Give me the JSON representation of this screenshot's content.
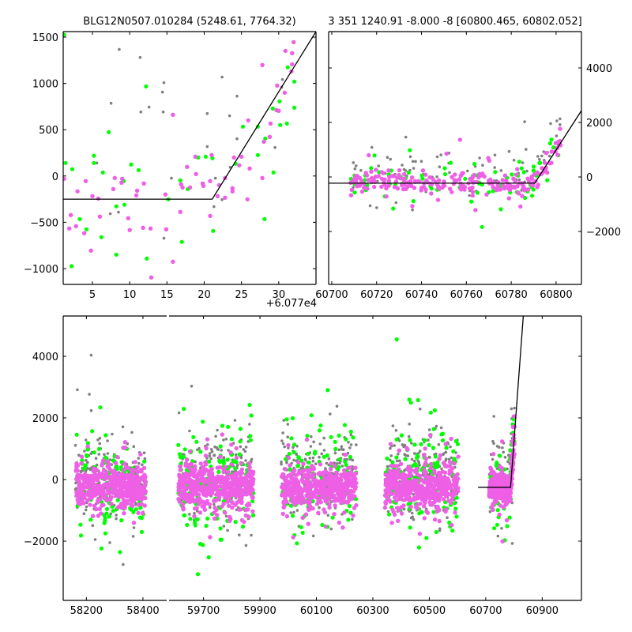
{
  "colors": {
    "gray": "#808080",
    "green": "#00ff00",
    "magenta": "#ef5fe6",
    "model": "#000000"
  },
  "chart_data": [
    {
      "panel": "top-left",
      "type": "scatter",
      "title": "BLG12N0507.010284 (5248.61, 7764.32)",
      "xlim": [
        1.08,
        35.0
      ],
      "ylim": [
        -1171,
        1560
      ],
      "x_offset_text": "+6.077e4",
      "xticks": [
        5,
        10,
        15,
        20,
        25,
        30
      ],
      "xtick_labels": [
        "5",
        "10",
        "15",
        "20",
        "25",
        "30"
      ],
      "yticks": [
        -1000,
        -500,
        0,
        500,
        1000,
        1500
      ],
      "ytick_labels": [
        "−1000",
        "−500",
        "0",
        "500",
        "1000",
        "1500"
      ],
      "ytick_side": "left",
      "model_line": [
        [
          1.08,
          -250
        ],
        [
          21.07,
          -250
        ],
        [
          35.0,
          1560
        ]
      ],
      "series": [
        {
          "name": "gray",
          "points": [
            [
              8.6,
              1367
            ],
            [
              11.4,
              1281
            ],
            [
              7.5,
              786
            ],
            [
              11.5,
              692
            ],
            [
              12.6,
              744
            ],
            [
              14.6,
              1008
            ],
            [
              14.4,
              906
            ],
            [
              14.5,
              692
            ],
            [
              5.6,
              141
            ],
            [
              7.4,
              -408
            ],
            [
              8.5,
              -391
            ],
            [
              14.6,
              -673
            ],
            [
              15.6,
              -24
            ],
            [
              20.4,
              675
            ],
            [
              20.4,
              317
            ],
            [
              21.5,
              -24
            ],
            [
              21.3,
              -331
            ],
            [
              22.4,
              -255
            ],
            [
              22.4,
              1068
            ],
            [
              23.4,
              650
            ],
            [
              23.5,
              95
            ],
            [
              24.4,
              863
            ],
            [
              24.4,
              402
            ],
            [
              29.5,
              308
            ],
            [
              30.5,
              1042
            ],
            [
              30.4,
              960
            ]
          ]
        },
        {
          "name": "green",
          "points": [
            [
              1.2,
              1526
            ],
            [
              1.4,
              141
            ],
            [
              2.3,
              73
            ],
            [
              2.2,
              -974
            ],
            [
              3.3,
              -465
            ],
            [
              4.2,
              -576
            ],
            [
              5.2,
              218
            ],
            [
              5.2,
              141
            ],
            [
              6.4,
              38
            ],
            [
              7.2,
              474
            ],
            [
              6.2,
              -661
            ],
            [
              8.2,
              -849
            ],
            [
              8.2,
              -328
            ],
            [
              9.3,
              -311
            ],
            [
              9.2,
              -55
            ],
            [
              10.2,
              124
            ],
            [
              11.2,
              64
            ],
            [
              12.2,
              968
            ],
            [
              12.3,
              -892
            ],
            [
              15.2,
              -252
            ],
            [
              16.8,
              -47
            ],
            [
              17.0,
              -712
            ],
            [
              17.8,
              -141
            ],
            [
              19.2,
              200
            ],
            [
              20.2,
              209
            ],
            [
              21.1,
              192
            ],
            [
              21.2,
              -593
            ],
            [
              24.2,
              132
            ],
            [
              25.2,
              533
            ],
            [
              27.2,
              533
            ],
            [
              27.2,
              226
            ],
            [
              28.2,
              405
            ],
            [
              28.1,
              -465
            ],
            [
              29.3,
              38
            ],
            [
              29.2,
              729
            ],
            [
              30.1,
              806
            ],
            [
              30.2,
              550
            ],
            [
              31.1,
              567
            ],
            [
              31.2,
              1173
            ],
            [
              32.1,
              1020
            ],
            [
              32.1,
              738
            ]
          ]
        },
        {
          "name": "magenta",
          "points": [
            [
              1.2,
              -30
            ],
            [
              2.1,
              -422
            ],
            [
              1.9,
              -567
            ],
            [
              2.8,
              -542
            ],
            [
              3.9,
              -618
            ],
            [
              4.1,
              -55
            ],
            [
              3.0,
              -166
            ],
            [
              4.8,
              -806
            ],
            [
              5.0,
              -218
            ],
            [
              5.8,
              -243
            ],
            [
              6.0,
              -439
            ],
            [
              7.8,
              -141
            ],
            [
              8.0,
              -21
            ],
            [
              9.0,
              -30
            ],
            [
              8.9,
              -73
            ],
            [
              9.8,
              -456
            ],
            [
              10.0,
              -584
            ],
            [
              10.9,
              -209
            ],
            [
              11.0,
              -158
            ],
            [
              11.9,
              -81
            ],
            [
              11.8,
              -559
            ],
            [
              12.8,
              -567
            ],
            [
              12.9,
              -1096
            ],
            [
              14.9,
              -576
            ],
            [
              14.8,
              -200
            ],
            [
              15.8,
              661
            ],
            [
              15.8,
              -926
            ],
            [
              16.8,
              -388
            ],
            [
              16.9,
              -90
            ],
            [
              17.1,
              -124
            ],
            [
              18.1,
              -124
            ],
            [
              17.7,
              98
            ],
            [
              18.8,
              209
            ],
            [
              18.9,
              21
            ],
            [
              19.8,
              -81
            ],
            [
              19.9,
              -107
            ],
            [
              20.8,
              -431
            ],
            [
              20.8,
              -55
            ],
            [
              21.0,
              226
            ],
            [
              21.8,
              -218
            ],
            [
              22.0,
              -98
            ],
            [
              22.8,
              -21
            ],
            [
              22.8,
              -235
            ],
            [
              23.8,
              -132
            ],
            [
              23.8,
              -166
            ],
            [
              24.0,
              200
            ],
            [
              24.7,
              115
            ],
            [
              25.0,
              209
            ],
            [
              25.8,
              -252
            ],
            [
              25.9,
              601
            ],
            [
              26.1,
              81
            ],
            [
              27.8,
              1199
            ],
            [
              27.8,
              -21
            ],
            [
              28.0,
              371
            ],
            [
              28.8,
              422
            ],
            [
              28.9,
              567
            ],
            [
              29.7,
              712
            ],
            [
              29.8,
              977
            ],
            [
              30.0,
              704
            ],
            [
              30.8,
              900
            ],
            [
              30.9,
              1352
            ],
            [
              31.7,
              1130
            ],
            [
              31.8,
              1207
            ],
            [
              31.8,
              1327
            ],
            [
              32.0,
              1446
            ]
          ]
        }
      ]
    },
    {
      "panel": "top-right",
      "type": "scatter",
      "title": "3 351 1240.91 -8.000 -8 [60800.465, 60802.052]",
      "xlim": [
        60698.6,
        60811.3
      ],
      "ylim": [
        -3942,
        5333
      ],
      "xticks": [
        60700,
        60720,
        60740,
        60760,
        60780,
        60800
      ],
      "xtick_labels": [
        "60700",
        "60720",
        "60740",
        "60760",
        "60780",
        "60800"
      ],
      "yticks": [
        -2000,
        0,
        2000,
        4000
      ],
      "ytick_labels": [
        "−2000",
        "0",
        "2000",
        "4000"
      ],
      "ytick_side": "right",
      "model_line": [
        [
          60698.6,
          -230
        ],
        [
          60790.5,
          -230
        ],
        [
          60811.3,
          2435
        ]
      ],
      "trend": {
        "kink_x": 60790.5,
        "slope_per_day": 130
      },
      "seasons": [
        {
          "x_range": [
            60708,
            60802
          ],
          "counts": {
            "gray": 90,
            "green": 80,
            "magenta": 230
          },
          "y_center": {
            "gray": 250,
            "green": -150,
            "magenta": -200
          },
          "y_sigma": {
            "gray": 500,
            "green": 450,
            "magenta": 230
          }
        }
      ]
    },
    {
      "panel": "bottom",
      "type": "scatter",
      "broken_x_axis": true,
      "xlim_segments": [
        [
          58118,
          58484
        ],
        [
          59578,
          61039
        ]
      ],
      "ylim": [
        -3923,
        5308
      ],
      "xticks": [
        [
          58200,
          58400
        ],
        [
          59700,
          59900,
          60100,
          60300,
          60500,
          60700,
          60900
        ]
      ],
      "xtick_labels": [
        [
          "58200",
          "58400"
        ],
        [
          "59700",
          "59900",
          "60100",
          "60300",
          "60500",
          "60700",
          "60900"
        ]
      ],
      "yticks": [
        -2000,
        0,
        2000,
        4000
      ],
      "ytick_labels": [
        "−2000",
        "0",
        "2000",
        "4000"
      ],
      "model_line": [
        [
          60673,
          -250
        ],
        [
          60788,
          -250
        ],
        [
          60833,
          5308
        ]
      ],
      "trend": {
        "kink_x": 60788,
        "slope_per_day": 130
      },
      "seasons": [
        {
          "x_range": [
            58160,
            58410
          ],
          "counts": {
            "gray": 200,
            "green": 130,
            "magenta": 450
          },
          "y_center": {
            "gray": 0,
            "green": -250,
            "magenta": -200
          },
          "y_sigma": {
            "gray": 650,
            "green": 800,
            "magenta": 330
          }
        },
        {
          "x_range": [
            59611,
            59877
          ],
          "counts": {
            "gray": 220,
            "green": 140,
            "magenta": 470
          },
          "y_center": {
            "gray": 100,
            "green": -100,
            "magenta": -250
          },
          "y_sigma": {
            "gray": 650,
            "green": 850,
            "magenta": 350
          }
        },
        {
          "x_range": [
            59975,
            60241
          ],
          "counts": {
            "gray": 220,
            "green": 120,
            "magenta": 460
          },
          "y_center": {
            "gray": 100,
            "green": -100,
            "magenta": -250
          },
          "y_sigma": {
            "gray": 650,
            "green": 800,
            "magenta": 320
          }
        },
        {
          "x_range": [
            60343,
            60603
          ],
          "counts": {
            "gray": 220,
            "green": 140,
            "magenta": 470
          },
          "y_center": {
            "gray": 150,
            "green": -100,
            "magenta": -250
          },
          "y_sigma": {
            "gray": 700,
            "green": 850,
            "magenta": 330
          }
        },
        {
          "x_range": [
            60712,
            60802
          ],
          "counts": {
            "gray": 70,
            "green": 60,
            "magenta": 260
          },
          "y_center": {
            "gray": 200,
            "green": -150,
            "magenta": -250
          },
          "y_sigma": {
            "gray": 600,
            "green": 650,
            "magenta": 260
          }
        }
      ]
    }
  ]
}
